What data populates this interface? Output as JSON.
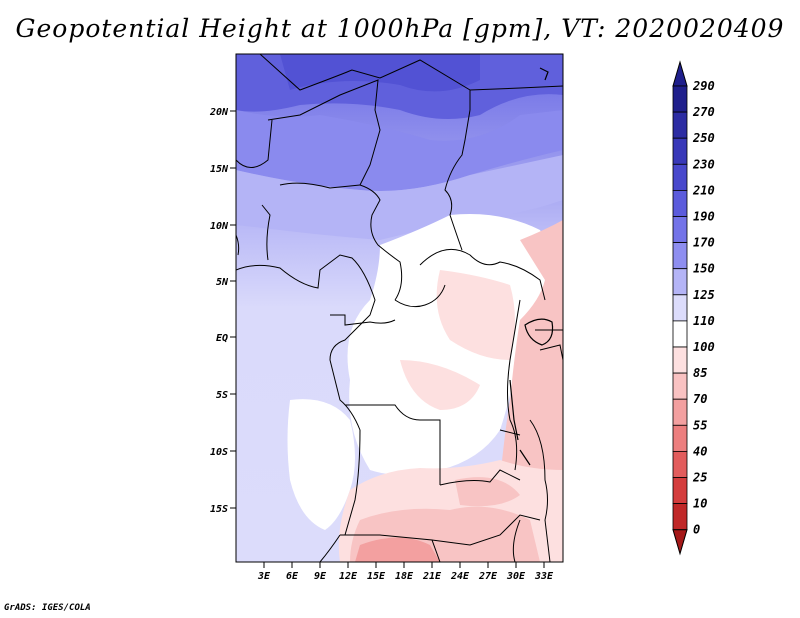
{
  "title": "Geopotential Height at 1000hPa [gpm], VT: 2020020409",
  "credit": "GrADS: IGES/COLA",
  "map": {
    "lat_labels": [
      "20N",
      "15N",
      "10N",
      "5N",
      "EQ",
      "5S",
      "10S",
      "15S"
    ],
    "lon_labels": [
      "3E",
      "6E",
      "9E",
      "12E",
      "15E",
      "18E",
      "21E",
      "24E",
      "27E",
      "30E",
      "33E"
    ]
  },
  "colorbar": {
    "levels": [
      "290",
      "270",
      "250",
      "230",
      "210",
      "190",
      "170",
      "150",
      "125",
      "110",
      "100",
      "85",
      "70",
      "55",
      "40",
      "25",
      "10",
      "0"
    ],
    "colors": [
      "#1f1f8c",
      "#2c2ca3",
      "#3838b8",
      "#4848cc",
      "#5b5bdc",
      "#7373e8",
      "#8e8ef0",
      "#b4b4f6",
      "#dcdcfb",
      "#ffffff",
      "#fde0e0",
      "#f9c2c2",
      "#f3a0a0",
      "#ec7e7e",
      "#e25c5c",
      "#d43d3d",
      "#c02828",
      "#a51818"
    ]
  },
  "palette": {
    "frame": "#000000",
    "land_line": "#000000"
  }
}
